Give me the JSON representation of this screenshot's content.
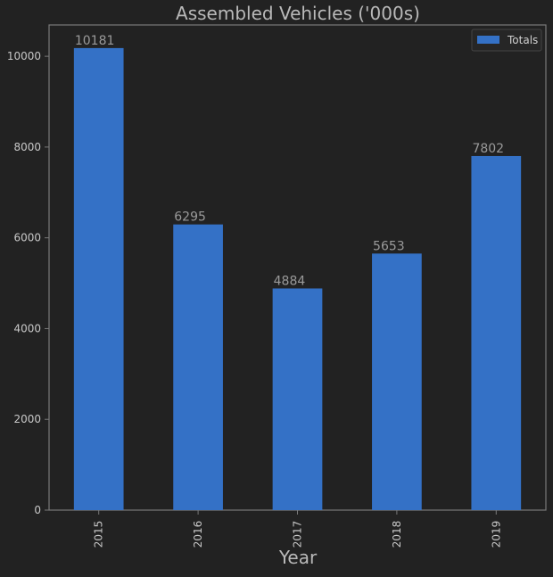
{
  "chart_data": {
    "type": "bar",
    "title": "Assembled Vehicles ('000s)",
    "xlabel": "Year",
    "ylabel": "",
    "categories": [
      "2015",
      "2016",
      "2017",
      "2018",
      "2019"
    ],
    "series": [
      {
        "name": "Totals",
        "values": [
          10181,
          6295,
          4884,
          5653,
          7802
        ]
      }
    ],
    "data_labels": [
      "10181",
      "6295",
      "4884",
      "5653",
      "7802"
    ],
    "ylim": [
      0,
      10690
    ],
    "yticks": [
      0,
      2000,
      4000,
      6000,
      8000,
      10000
    ],
    "ytick_labels": [
      "0",
      "2000",
      "4000",
      "6000",
      "8000",
      "10000"
    ],
    "grid": false,
    "legend_position": "top-right",
    "colors": {
      "background": "#222222",
      "bar": "#3471C6",
      "axis": "#7a7a7a",
      "text": "#c8c8c8",
      "title": "#b9b9b9",
      "data_label": "#9a9a9a",
      "legend_bg": "#262626",
      "legend_border": "#444444"
    }
  }
}
